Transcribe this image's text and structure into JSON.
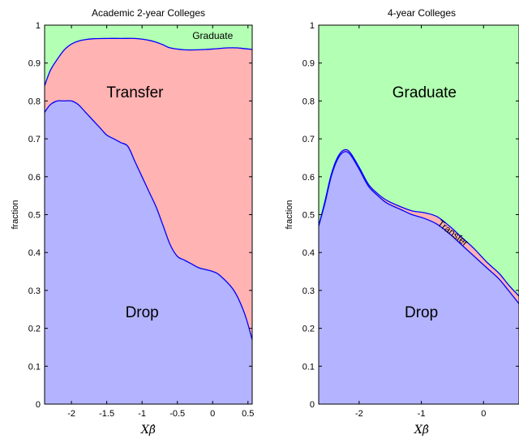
{
  "chart_data": [
    {
      "type": "area",
      "title": "Academic 2-year Colleges",
      "xlabel": "Xβ̂",
      "ylabel": "fraction",
      "xlim": [
        -2.38,
        0.56
      ],
      "ylim": [
        0,
        1
      ],
      "xticks": [
        -2,
        -1.5,
        -1,
        -0.5,
        0,
        0.5
      ],
      "xtick_labels": [
        "-2",
        "-1.5",
        "-1",
        "-0.5",
        "0",
        "0.5"
      ],
      "yticks": [
        0,
        0.1,
        0.2,
        0.3,
        0.4,
        0.5,
        0.6,
        0.7,
        0.8,
        0.9,
        1
      ],
      "ytick_labels": [
        "0",
        "0.1",
        "0.2",
        "0.3",
        "0.4",
        "0.5",
        "0.6",
        "0.7",
        "0.8",
        "0.9",
        "1"
      ],
      "stacked": true,
      "x": [
        -2.38,
        -2.3,
        -2.2,
        -2.1,
        -2.0,
        -1.9,
        -1.8,
        -1.7,
        -1.6,
        -1.5,
        -1.4,
        -1.3,
        -1.2,
        -1.1,
        -1.0,
        -0.9,
        -0.8,
        -0.7,
        -0.6,
        -0.5,
        -0.4,
        -0.3,
        -0.2,
        -0.1,
        0.0,
        0.1,
        0.2,
        0.3,
        0.4,
        0.5,
        0.56
      ],
      "series": [
        {
          "name": "Drop",
          "color": "#b3b3ff",
          "upper": [
            0.77,
            0.79,
            0.8,
            0.8,
            0.8,
            0.79,
            0.77,
            0.75,
            0.73,
            0.71,
            0.7,
            0.69,
            0.68,
            0.64,
            0.6,
            0.56,
            0.52,
            0.47,
            0.42,
            0.39,
            0.38,
            0.37,
            0.36,
            0.355,
            0.35,
            0.34,
            0.3,
            0.24,
            0.17
          ],
          "x_upper": [
            -2.38,
            -2.3,
            -2.2,
            -2.1,
            -2.0,
            -1.9,
            -1.8,
            -1.7,
            -1.6,
            -1.5,
            -1.4,
            -1.3,
            -1.2,
            -1.1,
            -1.0,
            -0.9,
            -0.8,
            -0.7,
            -0.6,
            -0.5,
            -0.4,
            -0.3,
            -0.2,
            -0.1,
            0.0,
            0.1,
            0.3,
            0.45,
            0.56
          ]
        },
        {
          "name": "Transfer",
          "color": "#ffb3b3",
          "upper": [
            0.84,
            0.88,
            0.91,
            0.935,
            0.95,
            0.958,
            0.962,
            0.964,
            0.965,
            0.965,
            0.965,
            0.963,
            0.96,
            0.955,
            0.948,
            0.94,
            0.935,
            0.935,
            0.937,
            0.94,
            0.94,
            0.938,
            0.936
          ],
          "x_upper": [
            -2.38,
            -2.3,
            -2.2,
            -2.1,
            -2.0,
            -1.9,
            -1.8,
            -1.7,
            -1.5,
            -1.3,
            -1.1,
            -1.0,
            -0.9,
            -0.8,
            -0.7,
            -0.6,
            -0.4,
            -0.2,
            0.0,
            0.2,
            0.35,
            0.45,
            0.56
          ]
        },
        {
          "name": "Graduate",
          "color": "#b3ffb3"
        }
      ],
      "labels": [
        {
          "text": "Transfer",
          "x": -1.1,
          "y": 0.82,
          "size": "large"
        },
        {
          "text": "Drop",
          "x": -1.0,
          "y": 0.24,
          "size": "large"
        },
        {
          "text": "Graduate",
          "x": 0.0,
          "y": 0.97,
          "size": "small"
        }
      ]
    },
    {
      "type": "area",
      "title": "4-year Colleges",
      "xlabel": "Xβ̂",
      "ylabel": "fraction",
      "xlim": [
        -2.65,
        0.57
      ],
      "ylim": [
        0,
        1
      ],
      "xticks": [
        -2,
        -1,
        0
      ],
      "xtick_labels": [
        "-2",
        "-1",
        "0"
      ],
      "yticks": [
        0,
        0.1,
        0.2,
        0.3,
        0.4,
        0.5,
        0.6,
        0.7,
        0.8,
        0.9,
        1
      ],
      "ytick_labels": [
        "0",
        "0.1",
        "0.2",
        "0.3",
        "0.4",
        "0.5",
        "0.6",
        "0.7",
        "0.8",
        "0.9",
        "1"
      ],
      "stacked": true,
      "series": [
        {
          "name": "Drop",
          "color": "#b3b3ff",
          "upper": [
            0.47,
            0.53,
            0.6,
            0.645,
            0.665,
            0.66,
            0.62,
            0.575,
            0.55,
            0.53,
            0.515,
            0.5,
            0.49,
            0.475,
            0.45,
            0.42,
            0.39,
            0.36,
            0.33,
            0.3,
            0.265
          ],
          "x_upper": [
            -2.65,
            -2.55,
            -2.45,
            -2.35,
            -2.25,
            -2.15,
            -2.0,
            -1.85,
            -1.7,
            -1.55,
            -1.35,
            -1.15,
            -0.95,
            -0.75,
            -0.55,
            -0.35,
            -0.15,
            0.05,
            0.25,
            0.4,
            0.57
          ]
        },
        {
          "name": "Transfer",
          "color": "#ffb3b3",
          "upper": [
            0.47,
            0.535,
            0.605,
            0.65,
            0.67,
            0.665,
            0.625,
            0.58,
            0.555,
            0.537,
            0.522,
            0.51,
            0.505,
            0.495,
            0.47,
            0.44,
            0.41,
            0.375,
            0.345,
            0.315,
            0.285
          ],
          "x_upper": [
            -2.65,
            -2.55,
            -2.45,
            -2.35,
            -2.25,
            -2.15,
            -2.0,
            -1.85,
            -1.7,
            -1.55,
            -1.35,
            -1.15,
            -0.95,
            -0.75,
            -0.55,
            -0.35,
            -0.15,
            0.05,
            0.25,
            0.4,
            0.57
          ]
        },
        {
          "name": "Graduate",
          "color": "#b3ffb3"
        }
      ],
      "labels": [
        {
          "text": "Graduate",
          "x": -0.95,
          "y": 0.82,
          "size": "large"
        },
        {
          "text": "Drop",
          "x": -1.0,
          "y": 0.24,
          "size": "large"
        },
        {
          "text": "Transfer",
          "x": -0.5,
          "y": 0.45,
          "size": "small",
          "rotate": 38
        }
      ]
    }
  ]
}
